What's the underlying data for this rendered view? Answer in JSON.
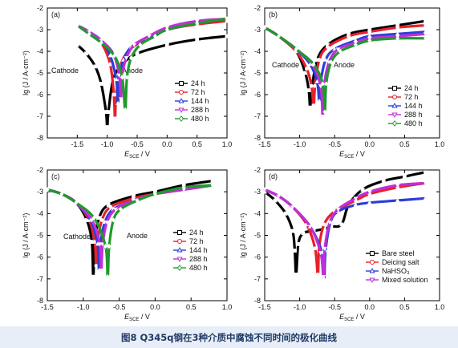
{
  "caption": "图8   Q345q钢在3种介质中腐蚀不同时间的极化曲线",
  "chart_data": [
    {
      "type": "line",
      "panel": "(a)",
      "xlabel": "E_SCE / V",
      "ylabel": "lg (J / A·cm⁻²)",
      "xlim": [
        -2,
        1
      ],
      "ylim": [
        -8,
        -2
      ],
      "xticks": [
        -1.5,
        -1.0,
        -0.5,
        0.0,
        0.5,
        1.0
      ],
      "yticks": [
        -8,
        -7,
        -6,
        -5,
        -4,
        -3,
        -2
      ],
      "annotations": [
        "Cathode",
        "Anode"
      ],
      "legend_position": "inside right",
      "series": [
        {
          "name": "24 h",
          "marker": "square",
          "color": "#000000",
          "x": [
            -1.5,
            -1.35,
            -1.2,
            -1.1,
            -1.02,
            -1.0,
            -0.98,
            -0.9,
            -0.75,
            -0.5,
            0.0,
            0.5,
            1.0
          ],
          "y": [
            -3.7,
            -4.1,
            -4.7,
            -5.5,
            -6.8,
            -7.5,
            -6.8,
            -5.3,
            -4.6,
            -4.1,
            -3.7,
            -3.45,
            -3.3
          ]
        },
        {
          "name": "72 h",
          "marker": "circle",
          "color": "#e8202a",
          "x": [
            -1.5,
            -1.3,
            -1.1,
            -0.95,
            -0.89,
            -0.87,
            -0.85,
            -0.78,
            -0.65,
            -0.4,
            0.0,
            0.5,
            1.0
          ],
          "y": [
            -2.8,
            -3.1,
            -3.6,
            -4.6,
            -6.0,
            -7.1,
            -6.0,
            -4.7,
            -4.0,
            -3.5,
            -3.0,
            -2.75,
            -2.6
          ]
        },
        {
          "name": "144 h",
          "marker": "triangle-up",
          "color": "#2b3fd6",
          "x": [
            -1.5,
            -1.3,
            -1.1,
            -0.95,
            -0.85,
            -0.82,
            -0.8,
            -0.73,
            -0.6,
            -0.35,
            0.0,
            0.5,
            1.0
          ],
          "y": [
            -2.8,
            -3.1,
            -3.5,
            -4.2,
            -5.3,
            -6.4,
            -5.3,
            -4.4,
            -3.8,
            -3.4,
            -3.0,
            -2.7,
            -2.5
          ]
        },
        {
          "name": "288 h",
          "marker": "triangle-down",
          "color": "#c02fd8",
          "x": [
            -1.5,
            -1.3,
            -1.1,
            -0.9,
            -0.8,
            -0.77,
            -0.75,
            -0.68,
            -0.55,
            -0.3,
            0.0,
            0.5,
            1.0
          ],
          "y": [
            -2.8,
            -3.1,
            -3.5,
            -4.1,
            -5.1,
            -6.2,
            -5.1,
            -4.3,
            -3.7,
            -3.3,
            -2.9,
            -2.6,
            -2.5
          ]
        },
        {
          "name": "480 h",
          "marker": "diamond",
          "color": "#1e9a2c",
          "x": [
            -1.5,
            -1.3,
            -1.1,
            -0.88,
            -0.75,
            -0.7,
            -0.67,
            -0.6,
            -0.45,
            -0.2,
            0.0,
            0.5,
            1.0
          ],
          "y": [
            -2.8,
            -3.2,
            -3.6,
            -4.2,
            -5.2,
            -6.7,
            -5.2,
            -4.3,
            -3.7,
            -3.3,
            -3.0,
            -2.7,
            -2.5
          ]
        }
      ]
    },
    {
      "type": "line",
      "panel": "(b)",
      "xlabel": "E_SCE / V",
      "ylabel": "lg (J / A·cm⁻²)",
      "xlim": [
        -1.5,
        1.0
      ],
      "ylim": [
        -8,
        -2
      ],
      "xticks": [
        -1.5,
        -1.0,
        -0.5,
        0.0,
        0.5,
        1.0
      ],
      "yticks": [
        -8,
        -7,
        -6,
        -5,
        -4,
        -3,
        -2
      ],
      "annotations": [
        "Cathode",
        "Anode"
      ],
      "legend_position": "inside right",
      "series": [
        {
          "name": "24 h",
          "marker": "square",
          "color": "#000000",
          "x": [
            -1.5,
            -1.3,
            -1.05,
            -0.92,
            -0.87,
            -0.85,
            -0.83,
            -0.75,
            -0.6,
            -0.3,
            0.0,
            0.4,
            0.8
          ],
          "y": [
            -2.9,
            -3.3,
            -4.0,
            -5.0,
            -5.8,
            -6.6,
            -5.8,
            -4.4,
            -3.7,
            -3.2,
            -3.0,
            -2.8,
            -2.6
          ]
        },
        {
          "name": "72 h",
          "marker": "circle",
          "color": "#e8202a",
          "x": [
            -1.5,
            -1.3,
            -1.05,
            -0.9,
            -0.83,
            -0.8,
            -0.78,
            -0.72,
            -0.6,
            -0.3,
            0.0,
            0.4,
            0.8
          ],
          "y": [
            -2.9,
            -3.3,
            -4.0,
            -4.8,
            -5.6,
            -6.5,
            -5.6,
            -4.4,
            -3.8,
            -3.3,
            -3.1,
            -2.9,
            -2.8
          ]
        },
        {
          "name": "144 h",
          "marker": "triangle-up",
          "color": "#2b3fd6",
          "x": [
            -1.5,
            -1.3,
            -1.05,
            -0.85,
            -0.75,
            -0.72,
            -0.7,
            -0.63,
            -0.5,
            -0.2,
            0.0,
            0.4,
            0.8
          ],
          "y": [
            -2.9,
            -3.3,
            -3.9,
            -4.6,
            -5.4,
            -6.3,
            -5.4,
            -4.4,
            -3.9,
            -3.5,
            -3.3,
            -3.2,
            -3.1
          ]
        },
        {
          "name": "288 h",
          "marker": "triangle-down",
          "color": "#c02fd8",
          "x": [
            -1.5,
            -1.3,
            -1.05,
            -0.82,
            -0.7,
            -0.67,
            -0.65,
            -0.58,
            -0.45,
            -0.2,
            0.0,
            0.4,
            0.8
          ],
          "y": [
            -2.9,
            -3.3,
            -3.9,
            -4.6,
            -5.6,
            -7.0,
            -5.6,
            -4.5,
            -3.9,
            -3.6,
            -3.4,
            -3.3,
            -3.2
          ]
        },
        {
          "name": "480 h",
          "marker": "diamond",
          "color": "#1e9a2c",
          "x": [
            -1.5,
            -1.3,
            -1.05,
            -0.8,
            -0.67,
            -0.64,
            -0.62,
            -0.55,
            -0.42,
            -0.2,
            0.0,
            0.4,
            0.8
          ],
          "y": [
            -2.9,
            -3.3,
            -3.9,
            -4.6,
            -5.5,
            -6.8,
            -5.5,
            -4.5,
            -4.0,
            -3.7,
            -3.5,
            -3.4,
            -3.4
          ]
        }
      ]
    },
    {
      "type": "line",
      "panel": "(c)",
      "xlabel": "E_SCE / V",
      "ylabel": "lg (J / A·cm⁻²)",
      "xlim": [
        -1.5,
        1.0
      ],
      "ylim": [
        -8,
        -2
      ],
      "xticks": [
        -1.5,
        -1.0,
        -0.5,
        0.0,
        0.5,
        1.0
      ],
      "yticks": [
        -8,
        -7,
        -6,
        -5,
        -4,
        -3,
        -2
      ],
      "annotations": [
        "Cathode",
        "Anode"
      ],
      "legend_position": "inside right",
      "series": [
        {
          "name": "24 h",
          "marker": "square",
          "color": "#000000",
          "x": [
            -1.5,
            -1.3,
            -1.1,
            -0.95,
            -0.88,
            -0.86,
            -0.84,
            -0.78,
            -0.65,
            -0.3,
            0.0,
            0.4,
            0.8
          ],
          "y": [
            -2.9,
            -3.1,
            -3.5,
            -4.3,
            -5.3,
            -6.9,
            -5.3,
            -4.2,
            -3.6,
            -3.2,
            -3.0,
            -2.7,
            -2.5
          ]
        },
        {
          "name": "72 h",
          "marker": "circle",
          "color": "#e8202a",
          "x": [
            -1.5,
            -1.3,
            -1.1,
            -0.92,
            -0.84,
            -0.82,
            -0.8,
            -0.74,
            -0.62,
            -0.3,
            0.0,
            0.4,
            0.8
          ],
          "y": [
            -2.9,
            -3.1,
            -3.5,
            -4.3,
            -5.3,
            -6.4,
            -5.3,
            -4.3,
            -3.7,
            -3.3,
            -3.1,
            -2.9,
            -2.7
          ]
        },
        {
          "name": "144 h",
          "marker": "triangle-up",
          "color": "#2b3fd6",
          "x": [
            -1.5,
            -1.3,
            -1.1,
            -0.9,
            -0.8,
            -0.78,
            -0.76,
            -0.7,
            -0.58,
            -0.3,
            0.0,
            0.4,
            0.8
          ],
          "y": [
            -2.9,
            -3.1,
            -3.5,
            -4.3,
            -5.4,
            -6.6,
            -5.4,
            -4.4,
            -3.8,
            -3.4,
            -3.1,
            -2.9,
            -2.7
          ]
        },
        {
          "name": "288 h",
          "marker": "triangle-down",
          "color": "#c02fd8",
          "x": [
            -1.5,
            -1.3,
            -1.1,
            -0.88,
            -0.77,
            -0.75,
            -0.73,
            -0.67,
            -0.55,
            -0.3,
            0.0,
            0.4,
            0.8
          ],
          "y": [
            -2.9,
            -3.1,
            -3.5,
            -4.3,
            -5.4,
            -6.6,
            -5.4,
            -4.4,
            -3.8,
            -3.4,
            -3.1,
            -2.9,
            -2.7
          ]
        },
        {
          "name": "480 h",
          "marker": "diamond",
          "color": "#1e9a2c",
          "x": [
            -1.5,
            -1.3,
            -1.1,
            -0.85,
            -0.69,
            -0.66,
            -0.64,
            -0.58,
            -0.48,
            -0.25,
            0.0,
            0.4,
            0.8
          ],
          "y": [
            -2.9,
            -3.1,
            -3.5,
            -4.2,
            -5.5,
            -6.9,
            -5.5,
            -4.3,
            -3.8,
            -3.4,
            -3.1,
            -2.8,
            -2.7
          ]
        }
      ]
    },
    {
      "type": "line",
      "panel": "(d)",
      "xlabel": "E_SCE / V",
      "ylabel": "lg (J / A·cm⁻²)",
      "xlim": [
        -1.5,
        1.0
      ],
      "ylim": [
        -8,
        -2
      ],
      "xticks": [
        -1.5,
        -1.0,
        -0.5,
        0.0,
        0.5,
        1.0
      ],
      "yticks": [
        -8,
        -7,
        -6,
        -5,
        -4,
        -3,
        -2
      ],
      "legend_position": "inside right",
      "series": [
        {
          "name": "Bare steel",
          "marker": "square",
          "color": "#000000",
          "x": [
            -1.5,
            -1.35,
            -1.2,
            -1.1,
            -1.07,
            -1.05,
            -1.02,
            -0.95,
            -0.8,
            -0.65,
            -0.55,
            -0.4,
            -0.3,
            -0.1,
            0.2,
            0.5,
            0.8
          ],
          "y": [
            -3.0,
            -3.4,
            -4.0,
            -4.8,
            -5.7,
            -6.8,
            -5.4,
            -4.9,
            -4.8,
            -4.7,
            -4.6,
            -4.5,
            -3.6,
            -2.9,
            -2.5,
            -2.3,
            -2.1
          ]
        },
        {
          "name": "Deicing salt",
          "marker": "circle",
          "color": "#e8202a",
          "x": [
            -1.5,
            -1.3,
            -1.1,
            -0.9,
            -0.78,
            -0.74,
            -0.72,
            -0.65,
            -0.5,
            -0.2,
            0.0,
            0.4,
            0.8
          ],
          "y": [
            -2.9,
            -3.2,
            -3.7,
            -4.5,
            -5.6,
            -6.8,
            -5.5,
            -4.5,
            -3.9,
            -3.4,
            -3.1,
            -2.8,
            -2.6
          ]
        },
        {
          "name": "NaHSO₃",
          "marker": "triangle-up",
          "color": "#2b3fd6",
          "x": [
            -1.5,
            -1.3,
            -1.1,
            -0.85,
            -0.68,
            -0.65,
            -0.63,
            -0.56,
            -0.45,
            -0.2,
            0.0,
            0.4,
            0.8
          ],
          "y": [
            -2.9,
            -3.2,
            -3.7,
            -4.6,
            -5.8,
            -7.0,
            -5.7,
            -4.4,
            -3.9,
            -3.6,
            -3.5,
            -3.4,
            -3.3
          ]
        },
        {
          "name": "Mixed solution",
          "marker": "triangle-down",
          "color": "#c02fd8",
          "x": [
            -1.5,
            -1.3,
            -1.1,
            -0.85,
            -0.7,
            -0.66,
            -0.64,
            -0.57,
            -0.45,
            -0.2,
            0.0,
            0.4,
            0.8
          ],
          "y": [
            -2.9,
            -3.2,
            -3.7,
            -4.6,
            -5.8,
            -6.9,
            -5.6,
            -4.4,
            -3.8,
            -3.3,
            -3.0,
            -2.7,
            -2.6
          ]
        }
      ]
    }
  ]
}
